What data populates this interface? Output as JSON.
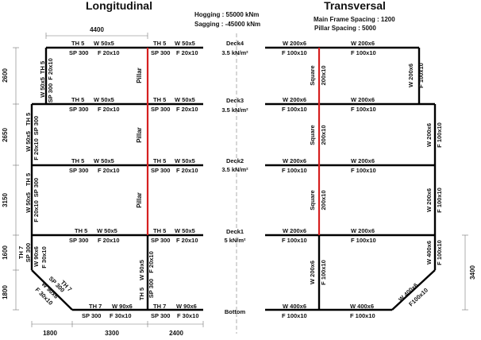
{
  "titles": {
    "longitudinal": "Longitudinal",
    "transversal": "Transversal"
  },
  "loads": {
    "hogging": "Hogging : 55000 kNm",
    "sagging": "Sagging : -45000 kNm"
  },
  "spacing": {
    "main_frame": "Main Frame Spacing : 1200",
    "pillar": "Pillar Spacing : 5000"
  },
  "decks": [
    {
      "name": "Deck4",
      "load": "3.5 kN/m²"
    },
    {
      "name": "Deck3",
      "load": "3.5 kN/m²"
    },
    {
      "name": "Deck2",
      "load": "3.5 kN/m²"
    },
    {
      "name": "Deck1",
      "load": "5 kN/m²"
    },
    {
      "name": "Bottom",
      "load": ""
    }
  ],
  "dimensions": {
    "top": "4400",
    "left": [
      "2600",
      "2650",
      "3150",
      "1600",
      "1800"
    ],
    "bottom": [
      "1800",
      "3300",
      "2400"
    ],
    "right": "3400"
  },
  "longitudinal": {
    "deck_th": "TH 5",
    "deck_w": "W 50x5",
    "deck_sp": "SP 300",
    "deck_f": "F 20x10",
    "bottom_th": "TH 7",
    "bottom_w": "W 90x6",
    "bottom_sp": "SP 300",
    "bottom_f": "F 30x10",
    "pillar": "Pillar",
    "slope_th": "TH 7",
    "slope_sp": "SP 300",
    "slope_w": "W 90x6",
    "slope_f": "F 30x10",
    "side_th": "TH 7",
    "side_sp": "SP 300",
    "side_w": "W 90x6",
    "side_f": "F 30x10",
    "bulkhead_th": "TH 5",
    "bulkhead_w": "W 50x5",
    "bulkhead_sp": "SP 300",
    "bulkhead_f": "F 20x10"
  },
  "transversal": {
    "deck_w": "W 200x6",
    "deck_f": "F 100x10",
    "bottom_w": "W 400x6",
    "bottom_f": "F 100x10",
    "pillar_1": "Square",
    "pillar_2": "200x10",
    "side_w": "W 200x6",
    "side_f": "F 100x10",
    "side_low_w": "W 400x6",
    "side_low_f": "F 100x10",
    "slope_w": "W 400x6",
    "slope_f": "F100x10",
    "center_w": "W 200x6",
    "center_f": "F 100x10"
  }
}
